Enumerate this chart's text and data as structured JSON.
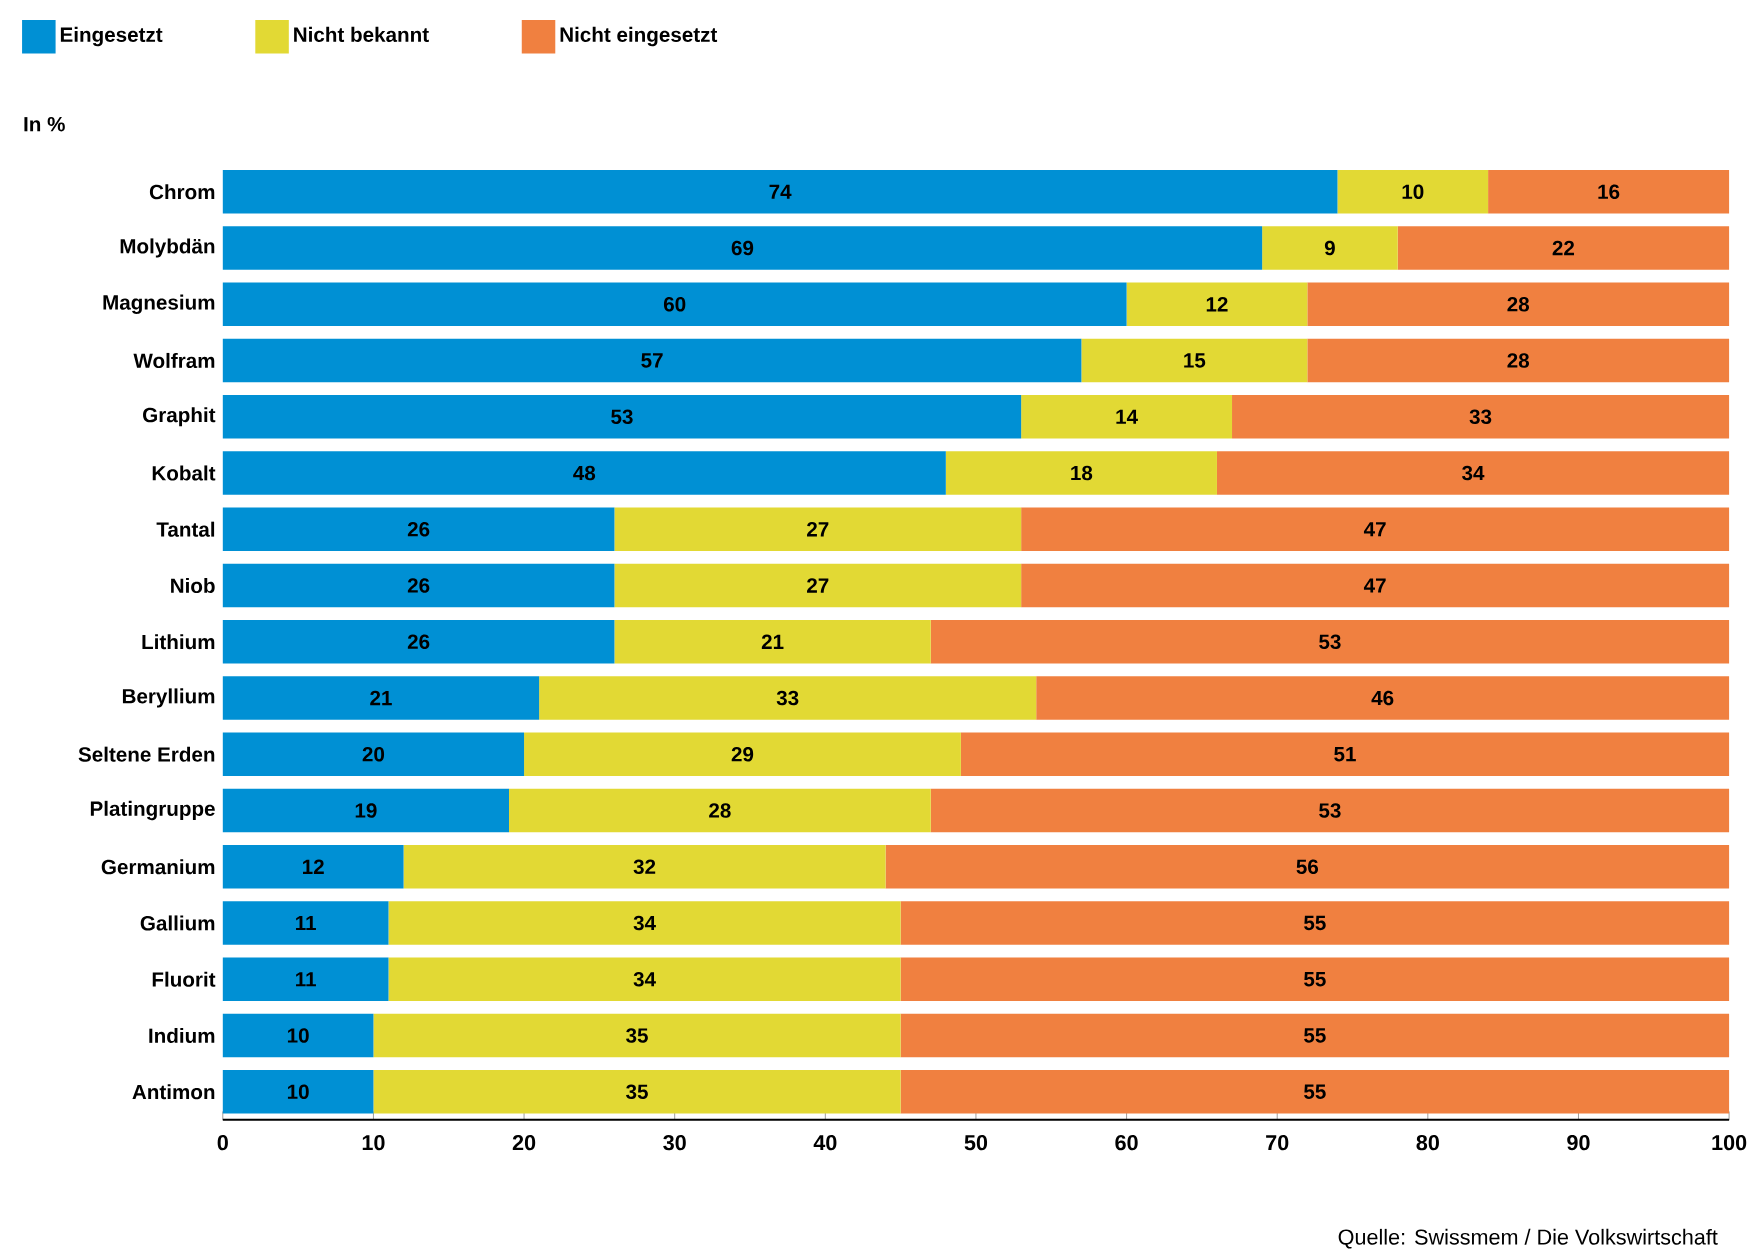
{
  "chart_data": {
    "type": "bar",
    "orientation": "horizontal",
    "stacked": true,
    "ylabel": "In %",
    "categories": [
      "Chrom",
      "Molybdän",
      "Magnesium",
      "Wolfram",
      "Graphit",
      "Kobalt",
      "Tantal",
      "Niob",
      "Lithium",
      "Beryllium",
      "Seltene Erden",
      "Platingruppe",
      "Germanium",
      "Gallium",
      "Fluorit",
      "Indium",
      "Antimon"
    ],
    "series": [
      {
        "name": "Eingesetzt",
        "color": "#0090d4",
        "values": [
          74,
          69,
          60,
          57,
          53,
          48,
          26,
          26,
          26,
          21,
          20,
          19,
          12,
          11,
          11,
          10,
          10
        ]
      },
      {
        "name": "Nicht bekannt",
        "color": "#e2d934",
        "values": [
          10,
          9,
          12,
          15,
          14,
          18,
          27,
          27,
          21,
          33,
          29,
          28,
          32,
          34,
          34,
          35,
          35
        ]
      },
      {
        "name": "Nicht eingesetzt",
        "color": "#f08040",
        "values": [
          16,
          22,
          28,
          28,
          33,
          34,
          47,
          47,
          53,
          46,
          51,
          53,
          56,
          55,
          55,
          55,
          55
        ]
      }
    ],
    "xlim": [
      0,
      100
    ],
    "xticks": [
      0,
      10,
      20,
      30,
      40,
      50,
      60,
      70,
      80,
      90,
      100
    ],
    "data_labels": true,
    "legend": "top left",
    "grid": false,
    "annotations": [
      "Quelle: Swissmem / Die Volkswirtschaft"
    ]
  }
}
